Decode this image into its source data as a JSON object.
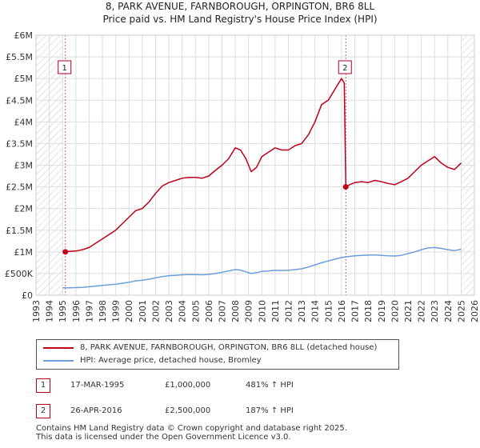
{
  "title_line1": "8, PARK AVENUE, FARNBOROUGH, ORPINGTON, BR6 8LL",
  "title_line2": "Price paid vs. HM Land Registry's House Price Index (HPI)",
  "chart_data": {
    "type": "line",
    "xlim": [
      1993,
      2026
    ],
    "ylim": [
      0,
      6000000
    ],
    "y_ticks": [
      {
        "value": 0,
        "label": "£0"
      },
      {
        "value": 500000,
        "label": "£500K"
      },
      {
        "value": 1000000,
        "label": "£1M"
      },
      {
        "value": 1500000,
        "label": "£1.5M"
      },
      {
        "value": 2000000,
        "label": "£2M"
      },
      {
        "value": 2500000,
        "label": "£2.5M"
      },
      {
        "value": 3000000,
        "label": "£3M"
      },
      {
        "value": 3500000,
        "label": "£3.5M"
      },
      {
        "value": 4000000,
        "label": "£4M"
      },
      {
        "value": 4500000,
        "label": "£4.5M"
      },
      {
        "value": 5000000,
        "label": "£5M"
      },
      {
        "value": 5500000,
        "label": "£5.5M"
      },
      {
        "value": 6000000,
        "label": "£6M"
      }
    ],
    "x_ticks": [
      "1993",
      "1994",
      "1995",
      "1996",
      "1997",
      "1998",
      "1999",
      "2000",
      "2001",
      "2002",
      "2003",
      "2004",
      "2005",
      "2006",
      "2007",
      "2008",
      "2009",
      "2010",
      "2011",
      "2012",
      "2013",
      "2014",
      "2015",
      "2016",
      "2017",
      "2018",
      "2019",
      "2020",
      "2021",
      "2022",
      "2023",
      "2024",
      "2025",
      "2026"
    ],
    "hatch_before": 1995.0,
    "hatch_after": 2025.0,
    "series": [
      {
        "name": "8, PARK AVENUE, FARNBOROUGH, ORPINGTON, BR6 8LL (detached house)",
        "color": "#c0001a",
        "x": [
          1995.21,
          1995.5,
          1996,
          1996.5,
          1997,
          1997.5,
          1998,
          1998.5,
          1999,
          1999.5,
          2000,
          2000.5,
          2001,
          2001.5,
          2002,
          2002.5,
          2003,
          2003.5,
          2004,
          2004.5,
          2005,
          2005.5,
          2006,
          2006.5,
          2007,
          2007.5,
          2008,
          2008.4,
          2008.8,
          2009.2,
          2009.6,
          2010,
          2010.5,
          2011,
          2011.5,
          2012,
          2012.5,
          2013,
          2013.5,
          2014,
          2014.5,
          2015,
          2015.5,
          2016,
          2016.2,
          2016.32,
          2016.6,
          2017,
          2017.5,
          2018,
          2018.5,
          2019,
          2019.5,
          2020,
          2020.5,
          2021,
          2021.5,
          2022,
          2022.5,
          2023,
          2023.5,
          2024,
          2024.5,
          2025
        ],
        "y": [
          1000000,
          1010000,
          1020000,
          1050000,
          1100000,
          1200000,
          1300000,
          1400000,
          1500000,
          1650000,
          1800000,
          1950000,
          2000000,
          2150000,
          2350000,
          2520000,
          2600000,
          2650000,
          2700000,
          2720000,
          2720000,
          2700000,
          2750000,
          2880000,
          3000000,
          3150000,
          3400000,
          3350000,
          3150000,
          2850000,
          2950000,
          3200000,
          3300000,
          3400000,
          3350000,
          3350000,
          3450000,
          3500000,
          3700000,
          4000000,
          4400000,
          4500000,
          4750000,
          5000000,
          4900000,
          2500000,
          2550000,
          2600000,
          2620000,
          2600000,
          2650000,
          2620000,
          2580000,
          2550000,
          2620000,
          2700000,
          2850000,
          3000000,
          3100000,
          3200000,
          3050000,
          2950000,
          2900000,
          3050000
        ]
      },
      {
        "name": "HPI: Average price, detached house, Bromley",
        "color": "#6a9fd8",
        "x": [
          1995,
          1995.5,
          1996,
          1996.5,
          1997,
          1997.5,
          1998,
          1998.5,
          1999,
          1999.5,
          2000,
          2000.5,
          2001,
          2001.5,
          2002,
          2002.5,
          2003,
          2003.5,
          2004,
          2004.5,
          2005,
          2005.5,
          2006,
          2006.5,
          2007,
          2007.5,
          2008,
          2008.4,
          2008.8,
          2009.2,
          2009.6,
          2010,
          2010.5,
          2011,
          2011.5,
          2012,
          2012.5,
          2013,
          2013.5,
          2014,
          2014.5,
          2015,
          2015.5,
          2016,
          2016.5,
          2017,
          2017.5,
          2018,
          2018.5,
          2019,
          2019.5,
          2020,
          2020.5,
          2021,
          2021.5,
          2022,
          2022.5,
          2023,
          2023.5,
          2024,
          2024.5,
          2025
        ],
        "y": [
          170000,
          172000,
          175000,
          180000,
          195000,
          210000,
          225000,
          240000,
          255000,
          275000,
          300000,
          330000,
          345000,
          370000,
          400000,
          430000,
          450000,
          460000,
          470000,
          475000,
          475000,
          470000,
          480000,
          500000,
          530000,
          560000,
          590000,
          580000,
          540000,
          500000,
          520000,
          550000,
          560000,
          575000,
          570000,
          575000,
          590000,
          610000,
          650000,
          700000,
          750000,
          790000,
          830000,
          870000,
          890000,
          910000,
          920000,
          925000,
          930000,
          920000,
          910000,
          905000,
          920000,
          960000,
          1000000,
          1050000,
          1090000,
          1100000,
          1080000,
          1050000,
          1030000,
          1060000
        ]
      }
    ],
    "sales": [
      {
        "label": "1",
        "x": 1995.21,
        "y": 1000000
      },
      {
        "label": "2",
        "x": 2016.32,
        "y": 2500000
      }
    ]
  },
  "legend": {
    "items": [
      {
        "label": "8, PARK AVENUE, FARNBOROUGH, ORPINGTON, BR6 8LL (detached house)",
        "color": "#c0001a"
      },
      {
        "label": "HPI: Average price, detached house, Bromley",
        "color": "#6a9fd8"
      }
    ]
  },
  "sales_table": [
    {
      "num": "1",
      "date": "17-MAR-1995",
      "price": "£1,000,000",
      "hpi": "481% ↑ HPI"
    },
    {
      "num": "2",
      "date": "26-APR-2016",
      "price": "£2,500,000",
      "hpi": "187% ↑ HPI"
    }
  ],
  "footer": {
    "line1": "Contains HM Land Registry data © Crown copyright and database right 2025.",
    "line2": "This data is licensed under the Open Government Licence v3.0."
  }
}
